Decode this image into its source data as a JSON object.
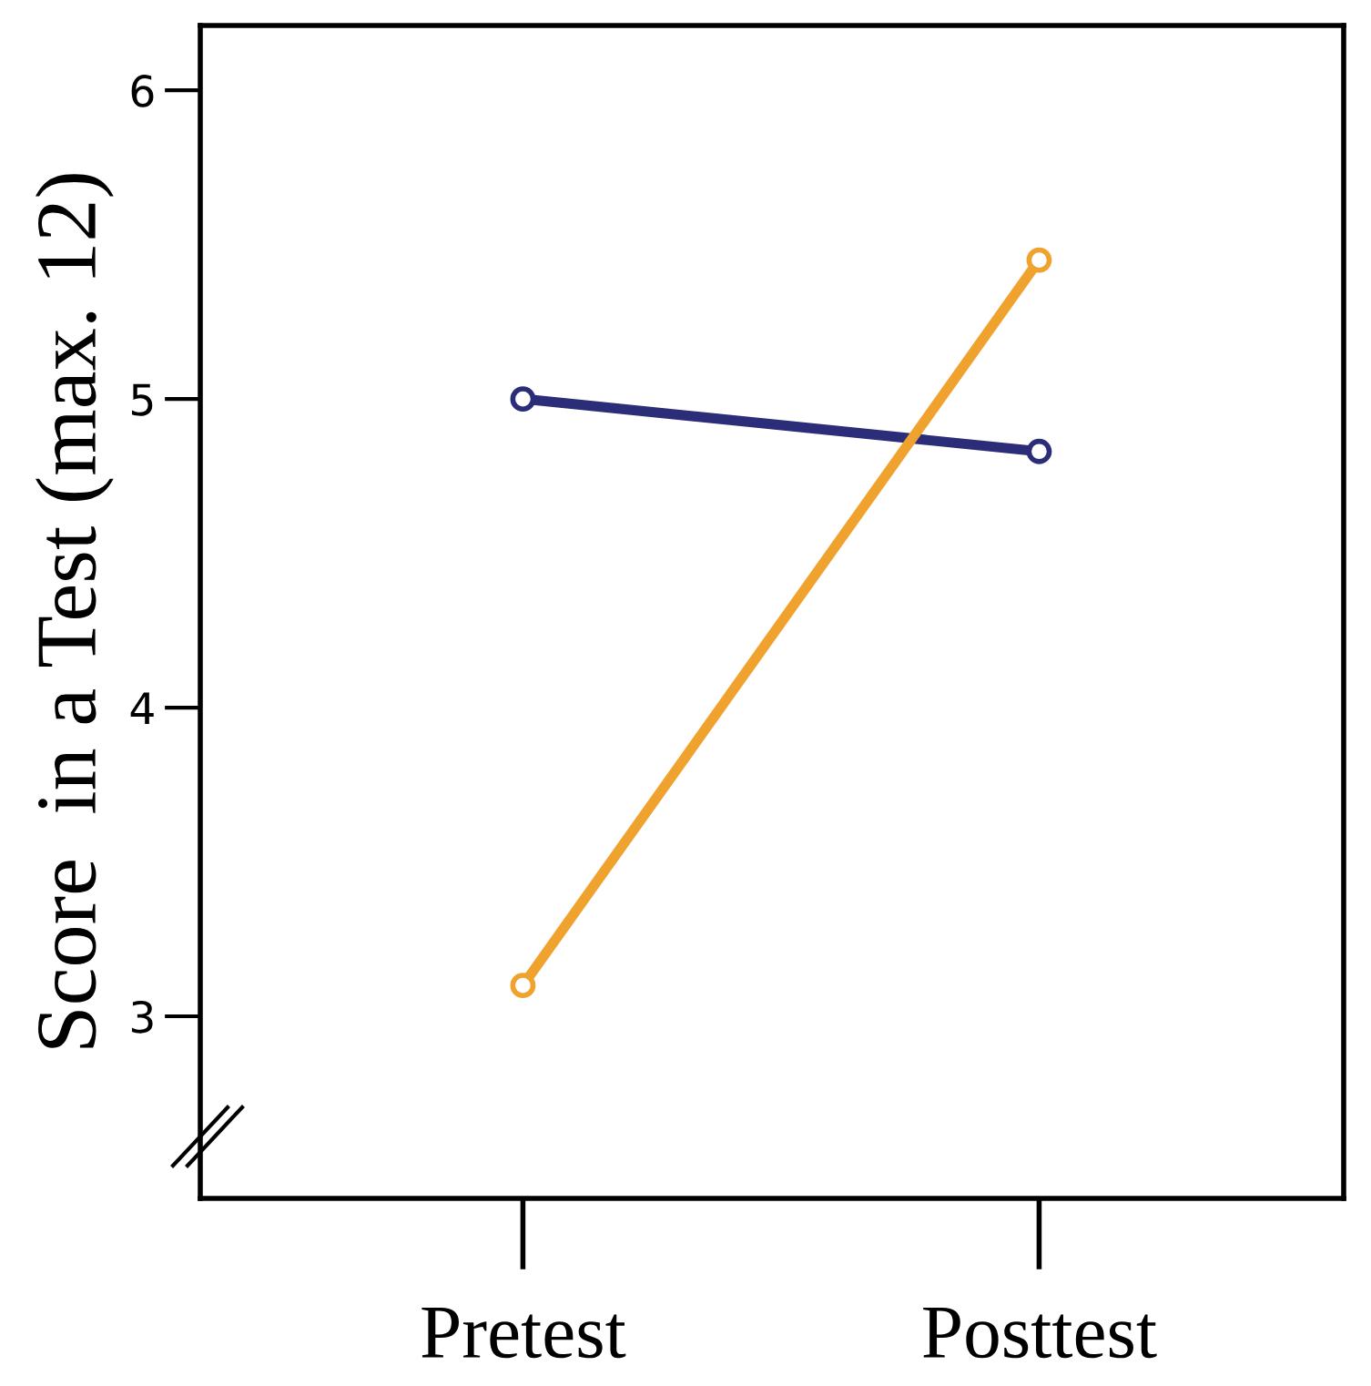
{
  "chart_data": {
    "type": "line",
    "ylabel": "Score  in a Test (max. 12)",
    "categories": [
      "Pretest",
      "Posttest"
    ],
    "series": [
      {
        "color": "#2b2d78",
        "values": [
          5.0,
          4.83
        ]
      },
      {
        "color": "#f0a22e",
        "values": [
          3.1,
          5.45
        ]
      }
    ],
    "ylim": [
      2.41,
      6.21
    ],
    "yticks": [
      3,
      4,
      5,
      6
    ],
    "marker": "circle",
    "line_style": "solid",
    "grid": false,
    "legend": false
  }
}
